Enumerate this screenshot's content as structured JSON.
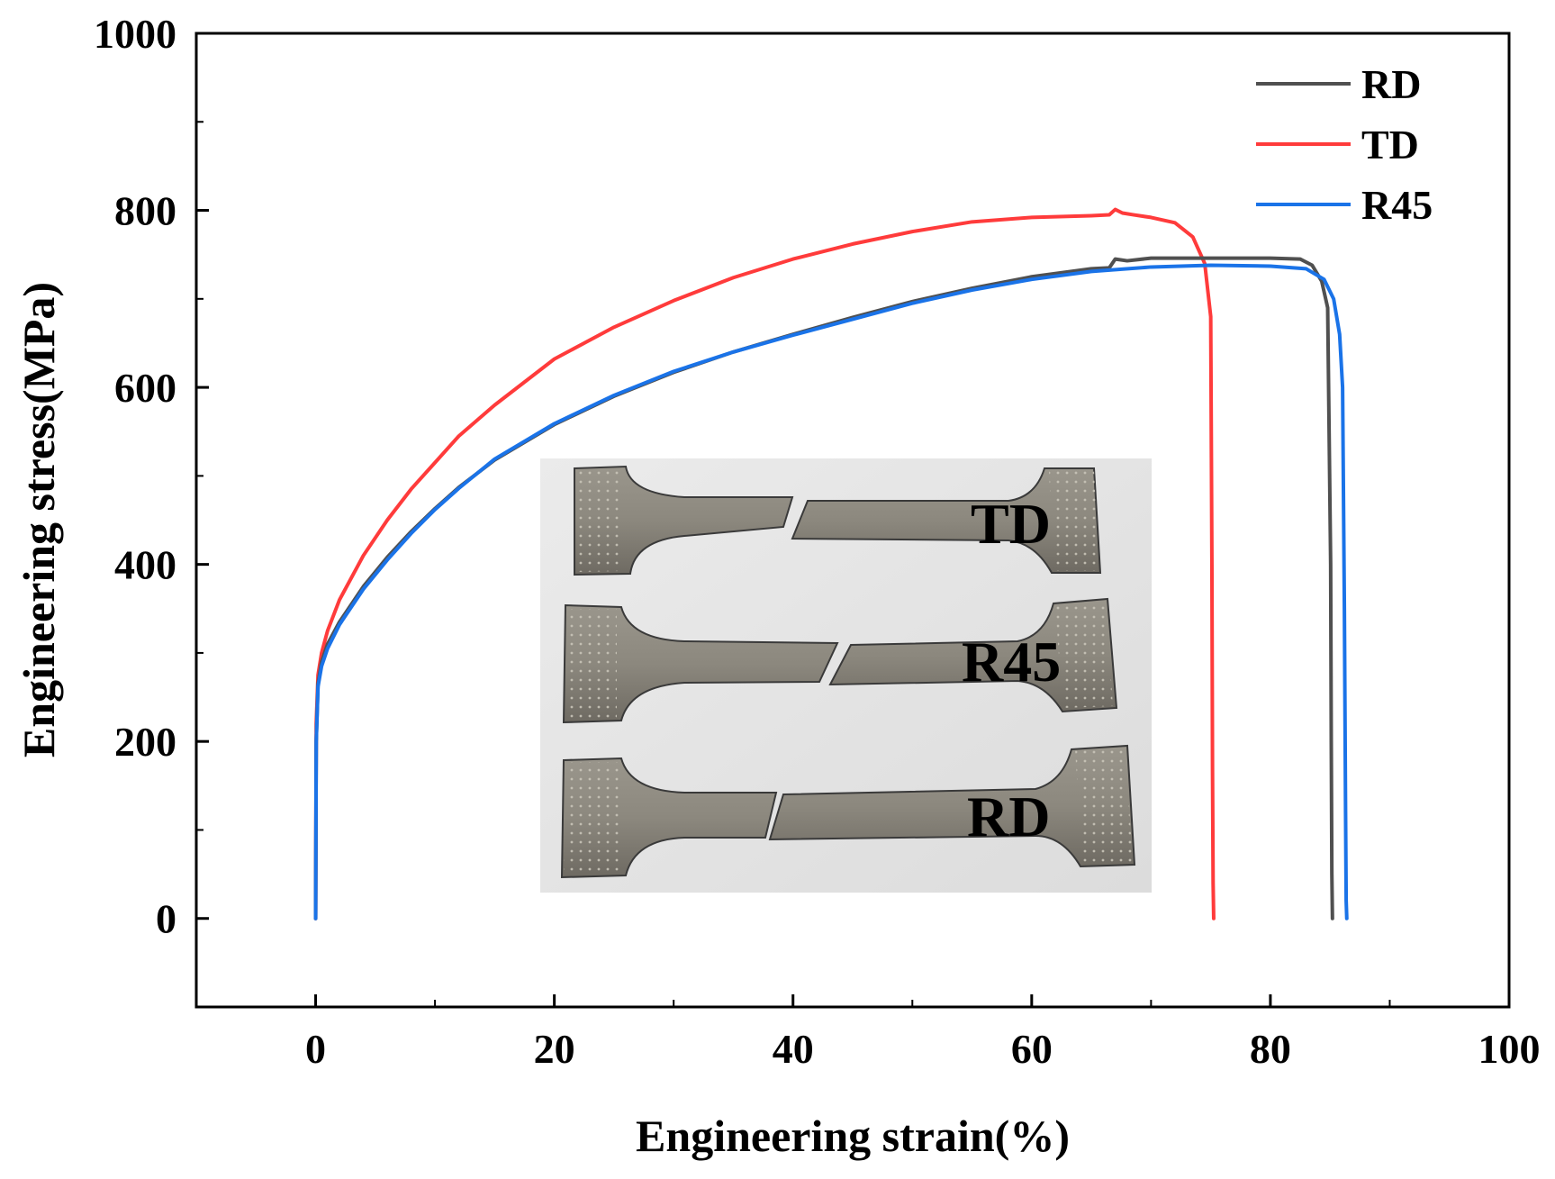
{
  "chart_data": {
    "type": "line",
    "xlabel": "Engineering strain(%)",
    "ylabel": "Engineering stress(MPa)",
    "xlim": [
      -10,
      100
    ],
    "ylim": [
      -100,
      1000
    ],
    "x_ticks": [
      0,
      20,
      40,
      60,
      80,
      100
    ],
    "y_ticks": [
      0,
      200,
      400,
      600,
      800,
      1000
    ],
    "x_tick_labels": [
      "0",
      "20",
      "40",
      "60",
      "80",
      "100"
    ],
    "y_tick_labels": [
      "0",
      "200",
      "400",
      "600",
      "800",
      "1000"
    ],
    "grid": false,
    "legend_position": "top-right",
    "series": [
      {
        "name": "RD",
        "color": "#505050",
        "x": [
          0,
          0.05,
          0.2,
          0.5,
          1,
          2,
          4,
          6,
          8,
          10,
          12,
          15,
          20,
          25,
          30,
          35,
          40,
          45,
          50,
          55,
          60,
          65,
          66.5,
          67,
          68,
          70,
          75,
          80,
          82.5,
          83.5,
          84.3,
          84.8,
          85.05,
          85.1,
          85.15,
          85.2
        ],
        "y": [
          0,
          200,
          265,
          290,
          310,
          335,
          375,
          408,
          437,
          463,
          487,
          518,
          558,
          590,
          617,
          640,
          660,
          679,
          697,
          712,
          725,
          734,
          735,
          745,
          743,
          746,
          746,
          746,
          745,
          738,
          720,
          690,
          400,
          200,
          50,
          0
        ]
      },
      {
        "name": "TD",
        "color": "#ff3b3b",
        "x": [
          0,
          0.05,
          0.2,
          0.5,
          1,
          2,
          4,
          6,
          8,
          10,
          12,
          15,
          20,
          25,
          30,
          35,
          40,
          45,
          50,
          55,
          60,
          65,
          66.5,
          67,
          67.6,
          68.5,
          70,
          72,
          73.5,
          74.5,
          75.0,
          75.1,
          75.15,
          75.2,
          75.25
        ],
        "y": [
          0,
          220,
          275,
          300,
          325,
          360,
          410,
          450,
          485,
          515,
          545,
          580,
          632,
          668,
          698,
          724,
          745,
          762,
          776,
          787,
          792,
          794,
          795,
          801,
          797,
          795,
          792,
          786,
          770,
          740,
          680,
          400,
          170,
          40,
          0
        ]
      },
      {
        "name": "R45",
        "color": "#1a73e8",
        "x": [
          0,
          0.05,
          0.2,
          0.5,
          1,
          2,
          4,
          6,
          8,
          10,
          12,
          15,
          20,
          25,
          30,
          35,
          40,
          45,
          50,
          55,
          60,
          65,
          70,
          75,
          80,
          83,
          84.5,
          85.3,
          85.8,
          86.05,
          86.2,
          86.3,
          86.35,
          86.4
        ],
        "y": [
          0,
          200,
          262,
          285,
          305,
          332,
          372,
          405,
          435,
          462,
          486,
          519,
          559,
          591,
          618,
          640,
          659,
          677,
          695,
          710,
          722,
          731,
          736,
          738,
          737,
          734,
          722,
          700,
          660,
          600,
          350,
          120,
          20,
          0
        ]
      }
    ]
  },
  "inset_photo": {
    "labels": [
      "TD",
      "R45",
      "RD"
    ]
  }
}
